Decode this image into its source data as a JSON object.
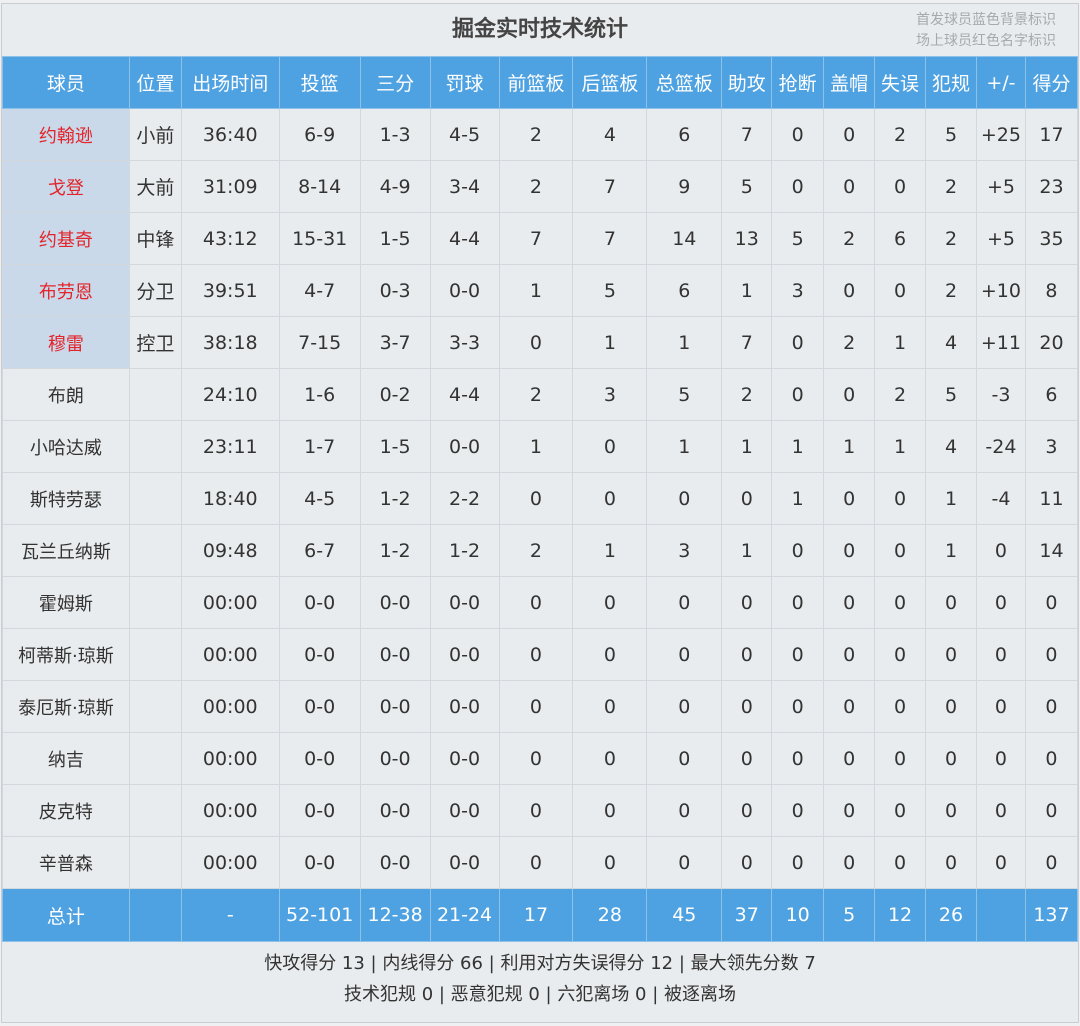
{
  "title": "掘金实时技术统计",
  "notes": [
    "首发球员蓝色背景标识",
    "场上球员红色名字标识"
  ],
  "colors": {
    "header_bg": "#4fa2e1",
    "starter_bg": "#c9d9ea",
    "on_court_name": "#e4242b"
  },
  "columns": [
    "球员",
    "位置",
    "出场时间",
    "投篮",
    "三分",
    "罚球",
    "前篮板",
    "后篮板",
    "总篮板",
    "助攻",
    "抢断",
    "盖帽",
    "失误",
    "犯规",
    "+/-",
    "得分"
  ],
  "rows": [
    {
      "starter": true,
      "on_court": true,
      "cells": [
        "约翰逊",
        "小前",
        "36:40",
        "6-9",
        "1-3",
        "4-5",
        "2",
        "4",
        "6",
        "7",
        "0",
        "0",
        "2",
        "5",
        "+25",
        "17"
      ]
    },
    {
      "starter": true,
      "on_court": true,
      "cells": [
        "戈登",
        "大前",
        "31:09",
        "8-14",
        "4-9",
        "3-4",
        "2",
        "7",
        "9",
        "5",
        "0",
        "0",
        "0",
        "2",
        "+5",
        "23"
      ]
    },
    {
      "starter": true,
      "on_court": true,
      "cells": [
        "约基奇",
        "中锋",
        "43:12",
        "15-31",
        "1-5",
        "4-4",
        "7",
        "7",
        "14",
        "13",
        "5",
        "2",
        "6",
        "2",
        "+5",
        "35"
      ]
    },
    {
      "starter": true,
      "on_court": true,
      "cells": [
        "布劳恩",
        "分卫",
        "39:51",
        "4-7",
        "0-3",
        "0-0",
        "1",
        "5",
        "6",
        "1",
        "3",
        "0",
        "0",
        "2",
        "+10",
        "8"
      ]
    },
    {
      "starter": true,
      "on_court": true,
      "cells": [
        "穆雷",
        "控卫",
        "38:18",
        "7-15",
        "3-7",
        "3-3",
        "0",
        "1",
        "1",
        "7",
        "0",
        "2",
        "1",
        "4",
        "+11",
        "20"
      ]
    },
    {
      "starter": false,
      "on_court": false,
      "cells": [
        "布朗",
        "",
        "24:10",
        "1-6",
        "0-2",
        "4-4",
        "2",
        "3",
        "5",
        "2",
        "0",
        "0",
        "2",
        "5",
        "-3",
        "6"
      ]
    },
    {
      "starter": false,
      "on_court": false,
      "cells": [
        "小哈达威",
        "",
        "23:11",
        "1-7",
        "1-5",
        "0-0",
        "1",
        "0",
        "1",
        "1",
        "1",
        "1",
        "1",
        "4",
        "-24",
        "3"
      ]
    },
    {
      "starter": false,
      "on_court": false,
      "cells": [
        "斯特劳瑟",
        "",
        "18:40",
        "4-5",
        "1-2",
        "2-2",
        "0",
        "0",
        "0",
        "0",
        "1",
        "0",
        "0",
        "1",
        "-4",
        "11"
      ]
    },
    {
      "starter": false,
      "on_court": false,
      "cells": [
        "瓦兰丘纳斯",
        "",
        "09:48",
        "6-7",
        "1-2",
        "1-2",
        "2",
        "1",
        "3",
        "1",
        "0",
        "0",
        "0",
        "1",
        "0",
        "14"
      ]
    },
    {
      "starter": false,
      "on_court": false,
      "cells": [
        "霍姆斯",
        "",
        "00:00",
        "0-0",
        "0-0",
        "0-0",
        "0",
        "0",
        "0",
        "0",
        "0",
        "0",
        "0",
        "0",
        "0",
        "0"
      ]
    },
    {
      "starter": false,
      "on_court": false,
      "cells": [
        "柯蒂斯·琼斯",
        "",
        "00:00",
        "0-0",
        "0-0",
        "0-0",
        "0",
        "0",
        "0",
        "0",
        "0",
        "0",
        "0",
        "0",
        "0",
        "0"
      ]
    },
    {
      "starter": false,
      "on_court": false,
      "cells": [
        "泰厄斯·琼斯",
        "",
        "00:00",
        "0-0",
        "0-0",
        "0-0",
        "0",
        "0",
        "0",
        "0",
        "0",
        "0",
        "0",
        "0",
        "0",
        "0"
      ]
    },
    {
      "starter": false,
      "on_court": false,
      "cells": [
        "纳吉",
        "",
        "00:00",
        "0-0",
        "0-0",
        "0-0",
        "0",
        "0",
        "0",
        "0",
        "0",
        "0",
        "0",
        "0",
        "0",
        "0"
      ]
    },
    {
      "starter": false,
      "on_court": false,
      "cells": [
        "皮克特",
        "",
        "00:00",
        "0-0",
        "0-0",
        "0-0",
        "0",
        "0",
        "0",
        "0",
        "0",
        "0",
        "0",
        "0",
        "0",
        "0"
      ]
    },
    {
      "starter": false,
      "on_court": false,
      "cells": [
        "辛普森",
        "",
        "00:00",
        "0-0",
        "0-0",
        "0-0",
        "0",
        "0",
        "0",
        "0",
        "0",
        "0",
        "0",
        "0",
        "0",
        "0"
      ]
    }
  ],
  "total": [
    "总计",
    "",
    "-",
    "52-101",
    "12-38",
    "21-24",
    "17",
    "28",
    "45",
    "37",
    "10",
    "5",
    "12",
    "26",
    "",
    "137"
  ],
  "footer": {
    "line1": "快攻得分 13 | 内线得分 66 | 利用对方失误得分 12 | 最大领先分数 7",
    "line2": "技术犯规 0 | 恶意犯规 0 | 六犯离场 0 | 被逐离场"
  }
}
